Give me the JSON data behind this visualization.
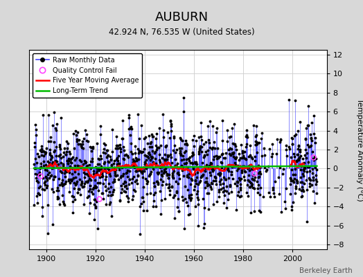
{
  "title": "AUBURN",
  "subtitle": "42.924 N, 76.535 W (United States)",
  "ylabel": "Temperature Anomaly (°C)",
  "watermark": "Berkeley Earth",
  "xlim": [
    1893,
    2014
  ],
  "ylim": [
    -8.5,
    12.5
  ],
  "yticks": [
    -8,
    -6,
    -4,
    -2,
    0,
    2,
    4,
    6,
    8,
    10,
    12
  ],
  "xticks": [
    1900,
    1920,
    1940,
    1960,
    1980,
    2000
  ],
  "background_color": "#d8d8d8",
  "plot_bg_color": "#ffffff",
  "raw_line_color": "#4444ff",
  "raw_marker_color": "#000000",
  "moving_avg_color": "#ff0000",
  "trend_color": "#00bb00",
  "qc_fail_color": "#ff44ff",
  "seed": 17,
  "n_months": 1320,
  "start_year": 1895,
  "end_year": 2010
}
